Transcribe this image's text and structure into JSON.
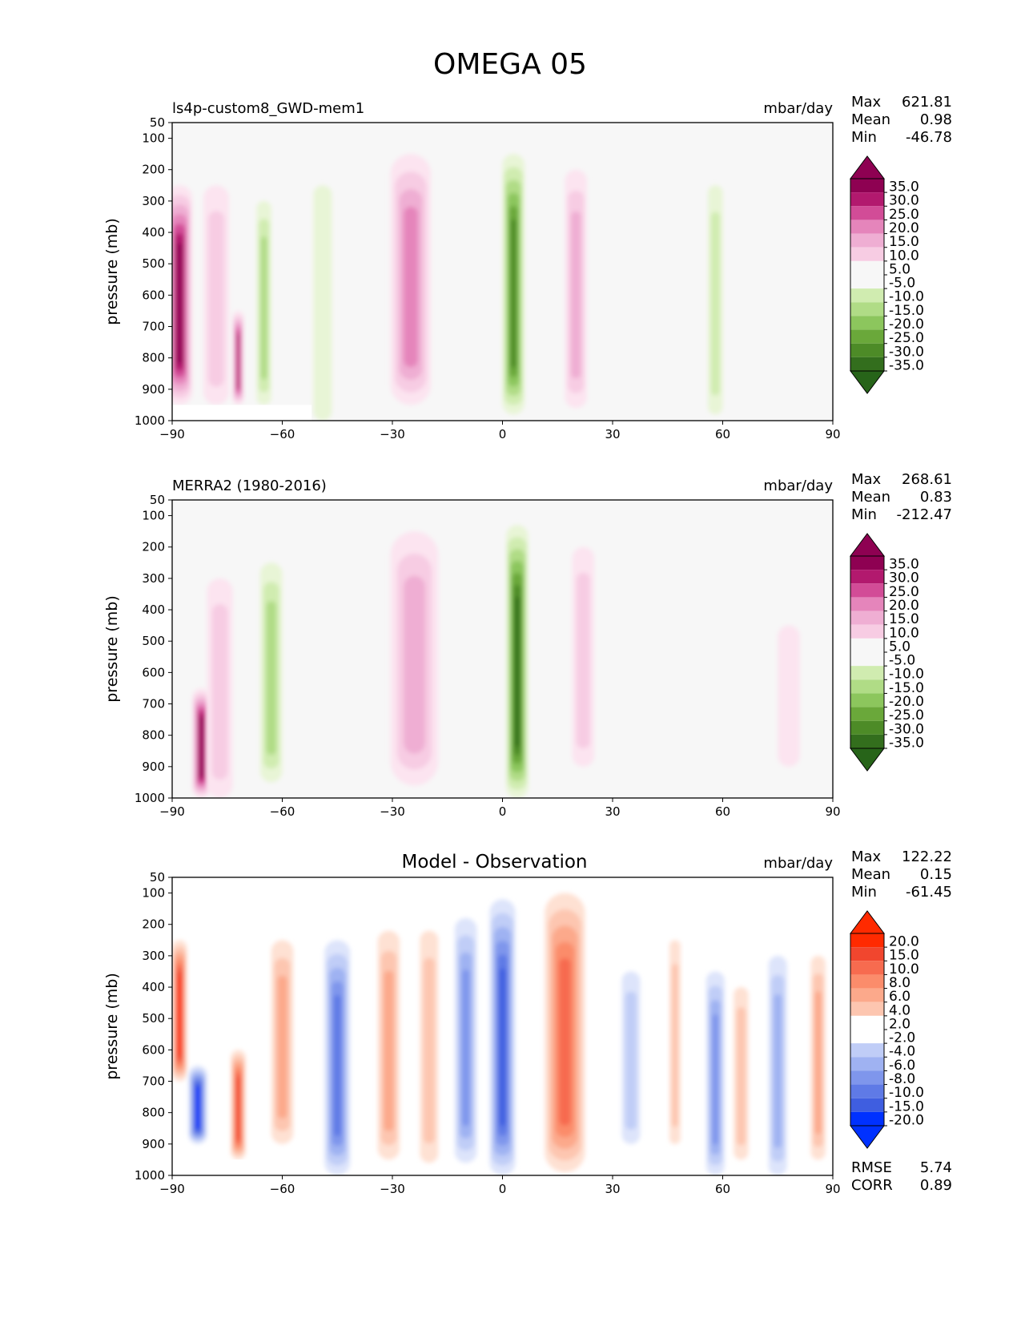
{
  "figure": {
    "title": "OMEGA 05"
  },
  "colors": {
    "panel_bg": "#f7f7f7",
    "pink_ramp": [
      "#fce4f0",
      "#f7cce3",
      "#efaed3",
      "#e585bb",
      "#d24c97",
      "#b2196e",
      "#8e0152"
    ],
    "green_ramp": [
      "#e8f5d6",
      "#d0ecb0",
      "#b0dc86",
      "#8cc65d",
      "#6aa83a",
      "#4d8b27",
      "#336e1d",
      "#276419"
    ],
    "diff_red": [
      "#fee1d3",
      "#fdc6b0",
      "#fca98b",
      "#fb8c6b",
      "#f76b4f",
      "#f1462e",
      "#ff2a00"
    ],
    "diff_blue": [
      "#dde4fb",
      "#c0cdf7",
      "#9fb2f2",
      "#7f96ec",
      "#5f7ae6",
      "#3f5ee0",
      "#0031ff"
    ]
  },
  "chart_data": [
    {
      "type": "contour",
      "title": "ls4p-custom8_GWD-mem1",
      "units": "mbar/day",
      "xlabel": "",
      "ylabel": "pressure (mb)",
      "xlim": [
        -90,
        90
      ],
      "ylim": [
        1000,
        50
      ],
      "xticks": [
        "−90",
        "−60",
        "−30",
        "0",
        "30",
        "60",
        "90"
      ],
      "yticks": [
        "50",
        "100",
        "200",
        "300",
        "400",
        "500",
        "600",
        "700",
        "800",
        "900",
        "1000"
      ],
      "stats": [
        {
          "label": "Max",
          "value": "621.81"
        },
        {
          "label": "Mean",
          "value": "0.98"
        },
        {
          "label": "Min",
          "value": "-46.78"
        }
      ],
      "colorbar_labels": [
        "35.0",
        "30.0",
        "25.0",
        "20.0",
        "15.0",
        "10.0",
        "5.0",
        "-5.0",
        "-10.0",
        "-15.0",
        "-20.0",
        "-25.0",
        "-30.0",
        "-35.0"
      ],
      "features": [
        {
          "type": "pos",
          "lat": -88,
          "p_top": 250,
          "p_bot": 950,
          "width": 7,
          "level": 6
        },
        {
          "type": "pos",
          "lat": -78,
          "p_top": 250,
          "p_bot": 950,
          "width": 7,
          "level": 1
        },
        {
          "type": "pos",
          "lat": -72,
          "p_top": 650,
          "p_bot": 950,
          "width": 3,
          "level": 5
        },
        {
          "type": "neg",
          "lat": -65,
          "p_top": 300,
          "p_bot": 950,
          "width": 4,
          "level": 2
        },
        {
          "type": "neg",
          "lat": -49,
          "p_top": 250,
          "p_bot": 1000,
          "width": 5,
          "level": 0
        },
        {
          "type": "pos",
          "lat": -25,
          "p_top": 150,
          "p_bot": 950,
          "width": 11,
          "level": 3
        },
        {
          "type": "neg",
          "lat": 3,
          "p_top": 150,
          "p_bot": 980,
          "width": 6,
          "level": 5
        },
        {
          "type": "pos",
          "lat": 20,
          "p_top": 200,
          "p_bot": 960,
          "width": 6,
          "level": 2
        },
        {
          "type": "neg",
          "lat": 58,
          "p_top": 250,
          "p_bot": 980,
          "width": 4,
          "level": 1
        }
      ]
    },
    {
      "type": "contour",
      "title": "MERRA2 (1980-2016)",
      "units": "mbar/day",
      "xlabel": "",
      "ylabel": "pressure (mb)",
      "xlim": [
        -90,
        90
      ],
      "ylim": [
        1000,
        50
      ],
      "xticks": [
        "−90",
        "−60",
        "−30",
        "0",
        "30",
        "60",
        "90"
      ],
      "yticks": [
        "50",
        "100",
        "200",
        "300",
        "400",
        "500",
        "600",
        "700",
        "800",
        "900",
        "1000"
      ],
      "stats": [
        {
          "label": "Max",
          "value": "268.61"
        },
        {
          "label": "Mean",
          "value": "0.83"
        },
        {
          "label": "Min",
          "value": "-212.47"
        }
      ],
      "colorbar_labels": [
        "35.0",
        "30.0",
        "25.0",
        "20.0",
        "15.0",
        "10.0",
        "5.0",
        "-5.0",
        "-10.0",
        "-15.0",
        "-20.0",
        "-25.0",
        "-30.0",
        "-35.0"
      ],
      "features": [
        {
          "type": "pos",
          "lat": -82,
          "p_top": 650,
          "p_bot": 1000,
          "width": 5,
          "level": 6
        },
        {
          "type": "pos",
          "lat": -77,
          "p_top": 300,
          "p_bot": 1000,
          "width": 7,
          "level": 1
        },
        {
          "type": "neg",
          "lat": -63,
          "p_top": 250,
          "p_bot": 950,
          "width": 6,
          "level": 2
        },
        {
          "type": "pos",
          "lat": -24,
          "p_top": 150,
          "p_bot": 960,
          "width": 13,
          "level": 2
        },
        {
          "type": "neg",
          "lat": 4,
          "p_top": 130,
          "p_bot": 1000,
          "width": 6,
          "level": 6
        },
        {
          "type": "pos",
          "lat": 22,
          "p_top": 200,
          "p_bot": 900,
          "width": 6,
          "level": 1
        },
        {
          "type": "pos",
          "lat": 78,
          "p_top": 450,
          "p_bot": 900,
          "width": 6,
          "level": 0
        }
      ]
    },
    {
      "type": "contour",
      "title": "Model - Observation",
      "units": "mbar/day",
      "xlabel": "",
      "ylabel": "pressure (mb)",
      "xlim": [
        -90,
        90
      ],
      "ylim": [
        1000,
        50
      ],
      "xticks": [
        "−90",
        "−60",
        "−30",
        "0",
        "30",
        "60",
        "90"
      ],
      "yticks": [
        "50",
        "100",
        "200",
        "300",
        "400",
        "500",
        "600",
        "700",
        "800",
        "900",
        "1000"
      ],
      "stats": [
        {
          "label": "Max",
          "value": "122.22"
        },
        {
          "label": "Mean",
          "value": "0.15"
        },
        {
          "label": "Min",
          "value": "-61.45"
        }
      ],
      "colorbar_labels": [
        "20.0",
        "15.0",
        "10.0",
        "8.0",
        "6.0",
        "4.0",
        "2.0",
        "-2.0",
        "-4.0",
        "-6.0",
        "-8.0",
        "-10.0",
        "-15.0",
        "-20.0"
      ],
      "extra_stats": [
        {
          "label": "RMSE",
          "value": "5.74"
        },
        {
          "label": "CORR",
          "value": "0.89"
        }
      ],
      "features": [
        {
          "type": "pos",
          "lat": -88,
          "p_top": 250,
          "p_bot": 700,
          "width": 4,
          "level": 6
        },
        {
          "type": "neg",
          "lat": -83,
          "p_top": 650,
          "p_bot": 900,
          "width": 5,
          "level": 6
        },
        {
          "type": "pos",
          "lat": -72,
          "p_top": 600,
          "p_bot": 950,
          "width": 4,
          "level": 5
        },
        {
          "type": "pos",
          "lat": -60,
          "p_top": 250,
          "p_bot": 900,
          "width": 6,
          "level": 2
        },
        {
          "type": "neg",
          "lat": -45,
          "p_top": 250,
          "p_bot": 1000,
          "width": 7,
          "level": 4
        },
        {
          "type": "pos",
          "lat": -31,
          "p_top": 220,
          "p_bot": 950,
          "width": 6,
          "level": 2
        },
        {
          "type": "pos",
          "lat": -20,
          "p_top": 220,
          "p_bot": 960,
          "width": 5,
          "level": 1
        },
        {
          "type": "neg",
          "lat": -10,
          "p_top": 180,
          "p_bot": 960,
          "width": 6,
          "level": 3
        },
        {
          "type": "neg",
          "lat": 0,
          "p_top": 120,
          "p_bot": 1000,
          "width": 7,
          "level": 5
        },
        {
          "type": "pos",
          "lat": 17,
          "p_top": 100,
          "p_bot": 990,
          "width": 11,
          "level": 4
        },
        {
          "type": "neg",
          "lat": 35,
          "p_top": 350,
          "p_bot": 900,
          "width": 5,
          "level": 1
        },
        {
          "type": "pos",
          "lat": 47,
          "p_top": 250,
          "p_bot": 900,
          "width": 3,
          "level": 1
        },
        {
          "type": "neg",
          "lat": 58,
          "p_top": 350,
          "p_bot": 1000,
          "width": 5,
          "level": 3
        },
        {
          "type": "pos",
          "lat": 65,
          "p_top": 400,
          "p_bot": 950,
          "width": 4,
          "level": 1
        },
        {
          "type": "neg",
          "lat": 75,
          "p_top": 300,
          "p_bot": 1000,
          "width": 5,
          "level": 2
        },
        {
          "type": "pos",
          "lat": 86,
          "p_top": 300,
          "p_bot": 950,
          "width": 4,
          "level": 2
        }
      ]
    }
  ]
}
